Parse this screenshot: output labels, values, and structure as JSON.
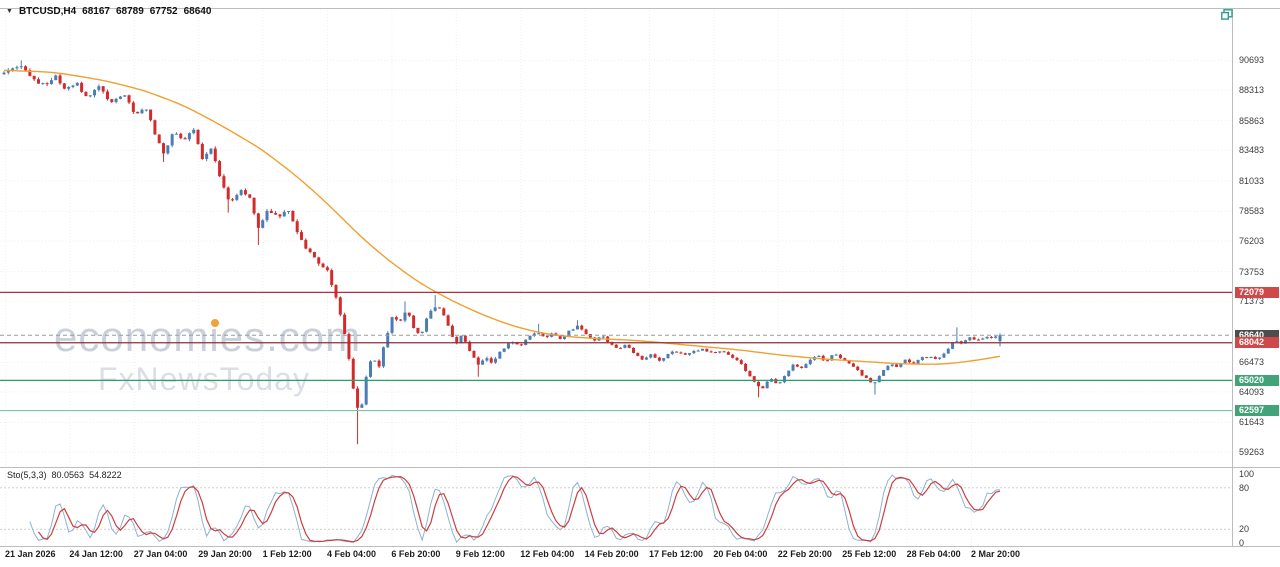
{
  "header": {
    "symbol": "BTCUSD,H4",
    "open": "68167",
    "high": "68789",
    "low": "67752",
    "close": "68640"
  },
  "watermark": {
    "text": "economies.com",
    "part1": "econom",
    "part_i": "i",
    "part2": "es.com",
    "line2": "FxNewsToday"
  },
  "indicator": {
    "name_label": "Sto(5,3,3)",
    "main_value": "80.0563",
    "signal_value": "54.8222"
  },
  "chart_data": {
    "type": "candlestick",
    "symbol": "BTCUSD",
    "timeframe": "H4",
    "title": "BTCUSD,H4 68167 68789 67752 68640",
    "ohlc_current": {
      "open": 68167,
      "high": 68789,
      "low": 67752,
      "close": 68640
    },
    "bar_count": 232,
    "colors": {
      "bull": "#4a7db5",
      "bear": "#d32b2b",
      "grid": "#efefef",
      "frame": "#bdbdbd",
      "background": "#ffffff"
    },
    "y_axis": {
      "price_top": 94900,
      "price_bottom": 58150,
      "ticks": [
        90693,
        88313,
        85863,
        83483,
        81033,
        78583,
        76203,
        73753,
        71373,
        66473,
        64093,
        61643,
        59263
      ]
    },
    "x_axis": {
      "labels": [
        "21 Jan 2026",
        "24 Jan 12:00",
        "27 Jan 04:00",
        "29 Jan 20:00",
        "1 Feb 12:00",
        "4 Feb 04:00",
        "6 Feb 20:00",
        "9 Feb 12:00",
        "12 Feb 04:00",
        "14 Feb 20:00",
        "17 Feb 12:00",
        "20 Feb 04:00",
        "22 Feb 20:00",
        "25 Feb 12:00",
        "28 Feb 04:00",
        "2 Mar 20:00"
      ]
    },
    "levels": [
      {
        "name": "resistance",
        "price": 72079,
        "label": "72079",
        "color": "#b03040",
        "tag_bg": "#ce4a4a",
        "width": 1.2,
        "dash": "none"
      },
      {
        "name": "current-price",
        "price": 68640,
        "label": "68640",
        "color": "#9a9a9a",
        "tag_bg": "#4d4d4d",
        "width": 1,
        "dash": "4 3"
      },
      {
        "name": "pivot",
        "price": 68042,
        "label": "68042",
        "color": "#8f2f3a",
        "tag_bg": "#ce4a4a",
        "width": 1.2,
        "dash": "none"
      },
      {
        "name": "support-1",
        "price": 65020,
        "label": "65020",
        "color": "#2f9e6e",
        "tag_bg": "#42a378",
        "width": 1.2,
        "dash": "none"
      },
      {
        "name": "support-2",
        "price": 62597,
        "label": "62597",
        "color": "#7cc3a2",
        "tag_bg": "#42a378",
        "width": 1.2,
        "dash": "none"
      }
    ],
    "moving_average": {
      "color": "#f0a030",
      "keyframes": [
        [
          0,
          89900
        ],
        [
          0.05,
          89750
        ],
        [
          0.1,
          89100
        ],
        [
          0.14,
          88300
        ],
        [
          0.18,
          87100
        ],
        [
          0.22,
          85400
        ],
        [
          0.26,
          83500
        ],
        [
          0.3,
          81000
        ],
        [
          0.33,
          78800
        ],
        [
          0.36,
          76400
        ],
        [
          0.39,
          74400
        ],
        [
          0.42,
          72700
        ],
        [
          0.45,
          71400
        ],
        [
          0.48,
          70300
        ],
        [
          0.51,
          69400
        ],
        [
          0.54,
          68800
        ],
        [
          0.57,
          68500
        ],
        [
          0.6,
          68350
        ],
        [
          0.63,
          68250
        ],
        [
          0.66,
          68050
        ],
        [
          0.7,
          67750
        ],
        [
          0.74,
          67450
        ],
        [
          0.78,
          67050
        ],
        [
          0.82,
          66750
        ],
        [
          0.86,
          66550
        ],
        [
          0.9,
          66350
        ],
        [
          0.94,
          66300
        ],
        [
          0.97,
          66550
        ],
        [
          1,
          66950
        ]
      ]
    },
    "price_keyframes": [
      [
        0.0,
        89600
      ],
      [
        0.008,
        90050
      ],
      [
        0.018,
        90350
      ],
      [
        0.028,
        89300
      ],
      [
        0.04,
        88700
      ],
      [
        0.052,
        89500
      ],
      [
        0.062,
        88300
      ],
      [
        0.072,
        89000
      ],
      [
        0.082,
        87700
      ],
      [
        0.095,
        88500
      ],
      [
        0.108,
        87300
      ],
      [
        0.12,
        88100
      ],
      [
        0.132,
        86400
      ],
      [
        0.142,
        87000
      ],
      [
        0.152,
        84600
      ],
      [
        0.16,
        83300
      ],
      [
        0.17,
        84900
      ],
      [
        0.18,
        84200
      ],
      [
        0.19,
        85200
      ],
      [
        0.199,
        82900
      ],
      [
        0.208,
        83700
      ],
      [
        0.218,
        81000
      ],
      [
        0.227,
        79300
      ],
      [
        0.237,
        80400
      ],
      [
        0.247,
        79700
      ],
      [
        0.256,
        77100
      ],
      [
        0.265,
        78700
      ],
      [
        0.275,
        78100
      ],
      [
        0.285,
        78800
      ],
      [
        0.295,
        76900
      ],
      [
        0.305,
        75400
      ],
      [
        0.315,
        74600
      ],
      [
        0.325,
        73700
      ],
      [
        0.333,
        71900
      ],
      [
        0.34,
        69600
      ],
      [
        0.347,
        66300
      ],
      [
        0.353,
        63200
      ],
      [
        0.358,
        62200
      ],
      [
        0.364,
        65600
      ],
      [
        0.37,
        67200
      ],
      [
        0.376,
        65900
      ],
      [
        0.383,
        68300
      ],
      [
        0.39,
        70200
      ],
      [
        0.397,
        69500
      ],
      [
        0.404,
        70800
      ],
      [
        0.411,
        69300
      ],
      [
        0.418,
        68600
      ],
      [
        0.425,
        70100
      ],
      [
        0.431,
        71100
      ],
      [
        0.439,
        70600
      ],
      [
        0.447,
        69200
      ],
      [
        0.453,
        67900
      ],
      [
        0.459,
        68700
      ],
      [
        0.467,
        67500
      ],
      [
        0.475,
        66300
      ],
      [
        0.483,
        66900
      ],
      [
        0.491,
        66400
      ],
      [
        0.499,
        67400
      ],
      [
        0.509,
        68200
      ],
      [
        0.519,
        67800
      ],
      [
        0.527,
        68500
      ],
      [
        0.535,
        69000
      ],
      [
        0.543,
        68400
      ],
      [
        0.551,
        68900
      ],
      [
        0.559,
        68300
      ],
      [
        0.567,
        69000
      ],
      [
        0.577,
        69400
      ],
      [
        0.585,
        68700
      ],
      [
        0.593,
        68200
      ],
      [
        0.601,
        68600
      ],
      [
        0.609,
        67900
      ],
      [
        0.617,
        67500
      ],
      [
        0.625,
        67900
      ],
      [
        0.633,
        67200
      ],
      [
        0.641,
        66700
      ],
      [
        0.649,
        67100
      ],
      [
        0.657,
        66600
      ],
      [
        0.665,
        67000
      ],
      [
        0.673,
        67400
      ],
      [
        0.682,
        67100
      ],
      [
        0.692,
        67300
      ],
      [
        0.702,
        67500
      ],
      [
        0.712,
        67200
      ],
      [
        0.722,
        67400
      ],
      [
        0.73,
        67000
      ],
      [
        0.738,
        66500
      ],
      [
        0.746,
        65700
      ],
      [
        0.754,
        64900
      ],
      [
        0.761,
        64300
      ],
      [
        0.769,
        65200
      ],
      [
        0.777,
        64600
      ],
      [
        0.785,
        65500
      ],
      [
        0.793,
        66300
      ],
      [
        0.801,
        66000
      ],
      [
        0.809,
        66700
      ],
      [
        0.817,
        67000
      ],
      [
        0.825,
        66500
      ],
      [
        0.833,
        67200
      ],
      [
        0.841,
        66800
      ],
      [
        0.849,
        66300
      ],
      [
        0.857,
        65800
      ],
      [
        0.865,
        65200
      ],
      [
        0.873,
        64700
      ],
      [
        0.881,
        65600
      ],
      [
        0.889,
        66400
      ],
      [
        0.897,
        66100
      ],
      [
        0.905,
        66700
      ],
      [
        0.913,
        66400
      ],
      [
        0.921,
        66800
      ],
      [
        0.929,
        67000
      ],
      [
        0.937,
        66700
      ],
      [
        0.945,
        67200
      ],
      [
        0.953,
        68200
      ],
      [
        0.961,
        68000
      ],
      [
        0.969,
        68450
      ],
      [
        0.977,
        68200
      ],
      [
        0.985,
        68400
      ],
      [
        1.0,
        68640
      ]
    ],
    "wick_events": [
      {
        "t": 0.018,
        "high": 90693
      },
      {
        "t": 0.16,
        "low": 82550
      },
      {
        "t": 0.227,
        "low": 78480
      },
      {
        "t": 0.256,
        "low": 75880
      },
      {
        "t": 0.356,
        "low": 59900
      },
      {
        "t": 0.404,
        "high": 71350
      },
      {
        "t": 0.431,
        "high": 71860
      },
      {
        "t": 0.475,
        "low": 65310
      },
      {
        "t": 0.535,
        "high": 69560
      },
      {
        "t": 0.577,
        "high": 69850
      },
      {
        "t": 0.756,
        "low": 63659
      },
      {
        "t": 0.873,
        "low": 63878
      },
      {
        "t": 0.957,
        "high": 69280
      }
    ],
    "stochastic": {
      "k_period": 5,
      "slowing": 3,
      "d_period": 3,
      "main_value": 80.0563,
      "signal_value": 54.8222,
      "upper_level": 80,
      "lower_level": 20,
      "scale_labels": [
        100,
        80,
        20,
        0
      ],
      "main_color": "#8fb2cf",
      "signal_color": "#cf3d3d"
    }
  }
}
